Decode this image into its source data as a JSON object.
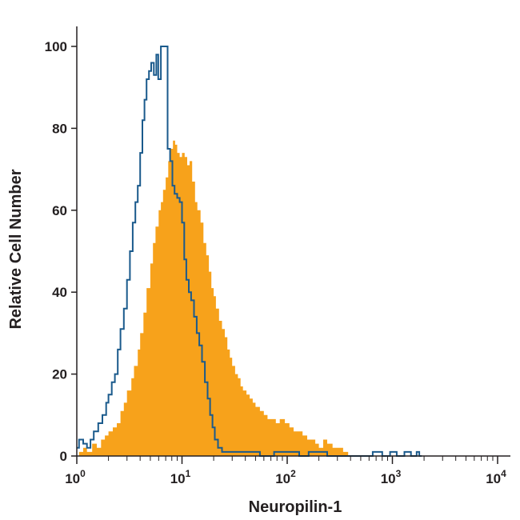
{
  "chart_data": {
    "type": "area",
    "xlabel": "Neuropilin-1",
    "ylabel": "Relative Cell Number",
    "x_scale": "log",
    "xlim": [
      1,
      10000
    ],
    "ylim": [
      0,
      100
    ],
    "x_ticks": [
      {
        "value": 1,
        "base": "10",
        "exp": "0"
      },
      {
        "value": 10,
        "base": "10",
        "exp": "1"
      },
      {
        "value": 100,
        "base": "10",
        "exp": "2"
      },
      {
        "value": 1000,
        "base": "10",
        "exp": "3"
      },
      {
        "value": 10000,
        "base": "10",
        "exp": "4"
      }
    ],
    "y_ticks": [
      0,
      20,
      40,
      60,
      80,
      100
    ],
    "grid": false,
    "series": [
      {
        "style": "filled",
        "color": "#f7a21b",
        "points": [
          [
            1.0,
            0
          ],
          [
            1.05,
            1
          ],
          [
            1.15,
            2
          ],
          [
            1.25,
            1
          ],
          [
            1.4,
            3
          ],
          [
            1.55,
            2
          ],
          [
            1.7,
            4
          ],
          [
            1.85,
            5
          ],
          [
            2.0,
            6
          ],
          [
            2.2,
            7
          ],
          [
            2.4,
            8
          ],
          [
            2.6,
            11
          ],
          [
            2.8,
            13
          ],
          [
            3.0,
            16
          ],
          [
            3.3,
            19
          ],
          [
            3.5,
            22
          ],
          [
            3.8,
            26
          ],
          [
            4.0,
            30
          ],
          [
            4.3,
            35
          ],
          [
            4.6,
            41
          ],
          [
            5.0,
            47
          ],
          [
            5.3,
            52
          ],
          [
            5.6,
            56
          ],
          [
            6.0,
            60
          ],
          [
            6.3,
            62
          ],
          [
            6.6,
            65
          ],
          [
            7.0,
            68
          ],
          [
            7.4,
            72
          ],
          [
            7.8,
            75
          ],
          [
            8.2,
            77
          ],
          [
            8.6,
            76
          ],
          [
            9.0,
            74
          ],
          [
            9.5,
            73
          ],
          [
            10.0,
            74
          ],
          [
            10.6,
            73
          ],
          [
            11.2,
            71
          ],
          [
            11.8,
            72
          ],
          [
            12.5,
            67
          ],
          [
            13.3,
            62
          ],
          [
            14.0,
            60
          ],
          [
            15.0,
            57
          ],
          [
            16.0,
            52
          ],
          [
            17.0,
            49
          ],
          [
            18.0,
            45
          ],
          [
            19.0,
            41
          ],
          [
            20.0,
            39
          ],
          [
            21.0,
            36
          ],
          [
            22.5,
            33
          ],
          [
            24.0,
            31
          ],
          [
            25.5,
            29
          ],
          [
            27.0,
            26
          ],
          [
            28.5,
            24
          ],
          [
            30.0,
            22
          ],
          [
            32.0,
            20
          ],
          [
            34.0,
            19
          ],
          [
            36.0,
            17
          ],
          [
            38.0,
            16
          ],
          [
            41.0,
            15
          ],
          [
            44.0,
            14
          ],
          [
            47.0,
            13
          ],
          [
            50.0,
            12
          ],
          [
            55.0,
            11
          ],
          [
            60.0,
            10
          ],
          [
            65.0,
            9
          ],
          [
            70.0,
            9
          ],
          [
            78.0,
            8
          ],
          [
            85.0,
            9
          ],
          [
            95.0,
            8
          ],
          [
            105.0,
            7
          ],
          [
            115.0,
            6
          ],
          [
            125.0,
            6
          ],
          [
            140.0,
            5
          ],
          [
            155.0,
            4
          ],
          [
            170.0,
            4
          ],
          [
            185.0,
            3
          ],
          [
            200.0,
            2
          ],
          [
            220.0,
            4
          ],
          [
            240.0,
            3
          ],
          [
            270.0,
            2
          ],
          [
            300.0,
            2
          ],
          [
            340.0,
            1
          ],
          [
            380.0,
            0
          ]
        ]
      },
      {
        "style": "outline",
        "color": "#1a5a8c",
        "points": [
          [
            1.0,
            2
          ],
          [
            1.05,
            4
          ],
          [
            1.15,
            3
          ],
          [
            1.25,
            2
          ],
          [
            1.35,
            4
          ],
          [
            1.45,
            6
          ],
          [
            1.6,
            8
          ],
          [
            1.75,
            10
          ],
          [
            1.9,
            13
          ],
          [
            2.0,
            15
          ],
          [
            2.15,
            18
          ],
          [
            2.3,
            20
          ],
          [
            2.45,
            26
          ],
          [
            2.6,
            31
          ],
          [
            2.8,
            36
          ],
          [
            3.0,
            43
          ],
          [
            3.2,
            50
          ],
          [
            3.4,
            57
          ],
          [
            3.6,
            62
          ],
          [
            3.8,
            66
          ],
          [
            4.0,
            74
          ],
          [
            4.2,
            82
          ],
          [
            4.4,
            87
          ],
          [
            4.6,
            92
          ],
          [
            4.85,
            94
          ],
          [
            5.1,
            96
          ],
          [
            5.4,
            93
          ],
          [
            5.7,
            98
          ],
          [
            5.95,
            92
          ],
          [
            6.3,
            100
          ],
          [
            6.6,
            100
          ],
          [
            7.0,
            100
          ],
          [
            7.3,
            75
          ],
          [
            7.7,
            72
          ],
          [
            8.1,
            66
          ],
          [
            8.5,
            64
          ],
          [
            9.0,
            63
          ],
          [
            9.5,
            62
          ],
          [
            10.0,
            57
          ],
          [
            10.5,
            48
          ],
          [
            11.0,
            43
          ],
          [
            11.6,
            40
          ],
          [
            12.2,
            38
          ],
          [
            13.0,
            34
          ],
          [
            13.8,
            30
          ],
          [
            14.6,
            27
          ],
          [
            15.5,
            23
          ],
          [
            16.5,
            18
          ],
          [
            17.5,
            14
          ],
          [
            18.5,
            10
          ],
          [
            19.5,
            7
          ],
          [
            20.5,
            4
          ],
          [
            22.0,
            2
          ],
          [
            24.0,
            1
          ],
          [
            30.0,
            1
          ],
          [
            40.0,
            1
          ],
          [
            55.0,
            0
          ],
          [
            75.0,
            1
          ],
          [
            100.0,
            1
          ],
          [
            130.0,
            0
          ],
          [
            160.0,
            1
          ],
          [
            200.0,
            1
          ],
          [
            240.0,
            0
          ],
          [
            300.0,
            0
          ],
          [
            400.0,
            0
          ],
          [
            520.0,
            0
          ],
          [
            650.0,
            1
          ],
          [
            800.0,
            0
          ],
          [
            950.0,
            1
          ],
          [
            1100.0,
            0
          ],
          [
            1300.0,
            1
          ],
          [
            1500.0,
            0
          ],
          [
            1700.0,
            1
          ],
          [
            1800.0,
            0
          ]
        ]
      }
    ]
  }
}
